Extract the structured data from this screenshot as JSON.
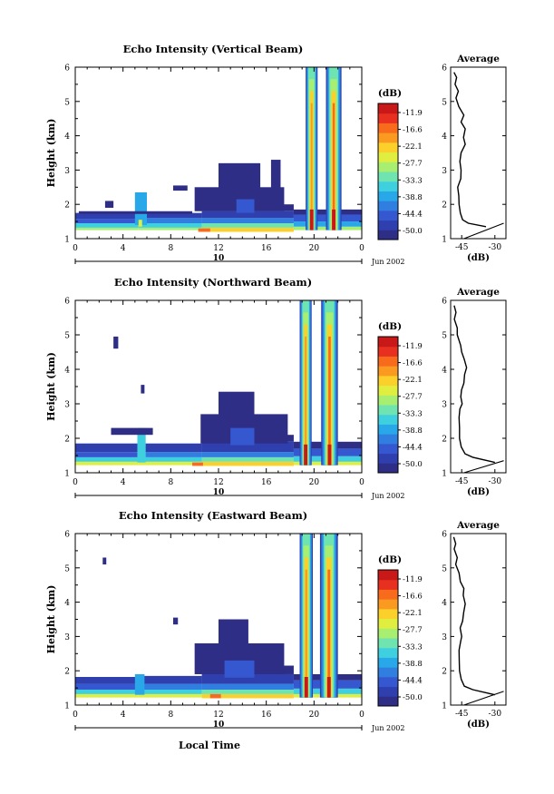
{
  "chart_data": [
    {
      "type": "heatmap",
      "title": "Echo Intensity (Vertical Beam)",
      "ylabel": "Height (km)",
      "ylim": [
        1,
        6
      ],
      "xlim": [
        0,
        24
      ],
      "x_ticks": [
        "0",
        "4",
        "8",
        "12",
        "16",
        "20",
        "0"
      ],
      "y_ticks": [
        "1",
        "2",
        "3",
        "4",
        "5",
        "6"
      ],
      "date_day": "10",
      "date_label": "Jun 2002",
      "colorbar": {
        "title": "(dB)",
        "ticks": [
          "-11.9",
          "-16.6",
          "-22.1",
          "-27.7",
          "-33.3",
          "-38.8",
          "-44.4",
          "-50.0"
        ]
      },
      "average": {
        "title": "Average",
        "xlabel": "(dB)",
        "x_ticks": [
          "-45",
          "-30"
        ],
        "xlim": [
          -50,
          -25
        ],
        "ylim": [
          1,
          6
        ],
        "profile": [
          [
            -34,
            1.35
          ],
          [
            -42,
            1.45
          ],
          [
            -44.6,
            1.55
          ],
          [
            -45.6,
            1.75
          ],
          [
            -46.2,
            2.0
          ],
          [
            -46.3,
            2.25
          ],
          [
            -46.8,
            2.5
          ],
          [
            -45.4,
            2.75
          ],
          [
            -45.3,
            3.0
          ],
          [
            -45.8,
            3.25
          ],
          [
            -45.3,
            3.5
          ],
          [
            -43.4,
            3.75
          ],
          [
            -44.2,
            3.95
          ],
          [
            -43.4,
            4.2
          ],
          [
            -45.3,
            4.4
          ],
          [
            -44.0,
            4.6
          ],
          [
            -46.3,
            4.85
          ],
          [
            -47.6,
            5.1
          ],
          [
            -46.5,
            5.3
          ],
          [
            -48.0,
            5.5
          ],
          [
            -47.3,
            5.7
          ],
          [
            -48.5,
            5.85
          ]
        ],
        "line": [
          [
            -44,
            1.0
          ],
          [
            -26,
            1.45
          ]
        ]
      },
      "layers": [
        {
          "t0": 0,
          "t1": 5.3,
          "bands": [
            [
              1.25,
              1.32,
              0.55
            ],
            [
              1.32,
              1.45,
              0.38
            ],
            [
              1.45,
              1.58,
              0.2
            ],
            [
              1.58,
              1.75,
              0.08
            ]
          ]
        },
        {
          "t0": 5.3,
          "t1": 10.6,
          "bands": [
            [
              1.25,
              1.32,
              0.55
            ],
            [
              1.32,
              1.45,
              0.4
            ],
            [
              1.45,
              1.6,
              0.22
            ],
            [
              1.6,
              1.75,
              0.08
            ]
          ]
        },
        {
          "t0": 10.6,
          "t1": 18.3,
          "bands": [
            [
              1.2,
              1.32,
              0.66
            ],
            [
              1.32,
              1.45,
              0.45
            ],
            [
              1.45,
              1.6,
              0.28
            ],
            [
              1.6,
              1.8,
              0.12
            ],
            [
              1.8,
              2.0,
              0.05
            ]
          ]
        },
        {
          "t0": 18.3,
          "t1": 24,
          "bands": [
            [
              1.25,
              1.35,
              0.55
            ],
            [
              1.35,
              1.5,
              0.35
            ],
            [
              1.5,
              1.7,
              0.15
            ],
            [
              1.7,
              1.85,
              0.05
            ]
          ]
        }
      ],
      "spots": [
        {
          "t0": 5.0,
          "t1": 6.0,
          "h0": 1.4,
          "h1": 2.35,
          "level": 0.35
        },
        {
          "t0": 5.3,
          "t1": 5.6,
          "h0": 1.35,
          "h1": 1.55,
          "level": 0.62
        },
        {
          "t0": 10.0,
          "t1": 17.5,
          "h0": 1.8,
          "h1": 2.5,
          "level": 0.05
        },
        {
          "t0": 12.0,
          "t1": 15.5,
          "h0": 2.4,
          "h1": 3.2,
          "level": 0.04
        },
        {
          "t0": 13.5,
          "t1": 15.0,
          "h0": 1.75,
          "h1": 2.15,
          "level": 0.16
        },
        {
          "t0": 2.5,
          "t1": 3.2,
          "h0": 1.9,
          "h1": 2.1,
          "level": 0.03
        },
        {
          "t0": 8.2,
          "t1": 9.4,
          "h0": 2.4,
          "h1": 2.55,
          "level": 0.02
        },
        {
          "t0": 16.4,
          "t1": 17.2,
          "h0": 2.3,
          "h1": 3.3,
          "level": 0.03
        },
        {
          "t0": 10.3,
          "t1": 11.3,
          "h0": 1.2,
          "h1": 1.3,
          "level": 0.85
        },
        {
          "t0": 0.3,
          "t1": 9.8,
          "h0": 1.72,
          "h1": 1.8,
          "level": 0.03
        }
      ],
      "columns": [
        {
          "t0": 19.3,
          "t1": 20.3,
          "h0": 1.25,
          "h1": 6.0,
          "peak": 0.95
        },
        {
          "t0": 21.0,
          "t1": 22.3,
          "h0": 1.25,
          "h1": 6.0,
          "peak": 0.98
        }
      ]
    },
    {
      "type": "heatmap",
      "title": "Echo Intensity (Northward Beam)",
      "ylabel": "Height (km)",
      "ylim": [
        1,
        6
      ],
      "xlim": [
        0,
        24
      ],
      "x_ticks": [
        "0",
        "4",
        "8",
        "12",
        "16",
        "20",
        "0"
      ],
      "y_ticks": [
        "1",
        "2",
        "3",
        "4",
        "5",
        "6"
      ],
      "date_day": "10",
      "date_label": "Jun 2002",
      "colorbar": {
        "title": "(dB)",
        "ticks": [
          "-11.9",
          "-16.6",
          "-22.1",
          "-27.7",
          "-33.3",
          "-38.8",
          "-44.4",
          "-50.0"
        ]
      },
      "average": {
        "title": "Average",
        "xlabel": "(dB)",
        "x_ticks": [
          "-45",
          "-30"
        ],
        "xlim": [
          -50,
          -25
        ],
        "ylim": [
          1,
          6
        ],
        "profile": [
          [
            -30,
            1.3
          ],
          [
            -40,
            1.45
          ],
          [
            -43.5,
            1.55
          ],
          [
            -45.2,
            1.75
          ],
          [
            -46.0,
            2.0
          ],
          [
            -46.0,
            2.3
          ],
          [
            -46.2,
            2.6
          ],
          [
            -45.8,
            2.85
          ],
          [
            -44.8,
            3.0
          ],
          [
            -45.4,
            3.2
          ],
          [
            -45.1,
            3.4
          ],
          [
            -44.0,
            3.6
          ],
          [
            -43.7,
            3.85
          ],
          [
            -42.8,
            4.05
          ],
          [
            -43.9,
            4.3
          ],
          [
            -45.0,
            4.5
          ],
          [
            -45.5,
            4.7
          ],
          [
            -47.0,
            5.0
          ],
          [
            -47.0,
            5.2
          ],
          [
            -48.3,
            5.45
          ],
          [
            -47.6,
            5.65
          ],
          [
            -48.4,
            5.85
          ]
        ],
        "line": [
          [
            -44,
            1.0
          ],
          [
            -26,
            1.35
          ]
        ]
      },
      "layers": [
        {
          "t0": 0,
          "t1": 5.3,
          "bands": [
            [
              1.22,
              1.32,
              0.58
            ],
            [
              1.32,
              1.45,
              0.38
            ],
            [
              1.45,
              1.6,
              0.2
            ],
            [
              1.6,
              1.85,
              0.08
            ]
          ]
        },
        {
          "t0": 5.3,
          "t1": 10.6,
          "bands": [
            [
              1.22,
              1.32,
              0.58
            ],
            [
              1.32,
              1.45,
              0.38
            ],
            [
              1.45,
              1.6,
              0.22
            ],
            [
              1.6,
              1.85,
              0.08
            ]
          ]
        },
        {
          "t0": 10.6,
          "t1": 18.3,
          "bands": [
            [
              1.2,
              1.32,
              0.66
            ],
            [
              1.32,
              1.45,
              0.45
            ],
            [
              1.45,
              1.6,
              0.28
            ],
            [
              1.6,
              1.9,
              0.12
            ],
            [
              1.9,
              2.1,
              0.05
            ]
          ]
        },
        {
          "t0": 18.3,
          "t1": 24,
          "bands": [
            [
              1.22,
              1.32,
              0.6
            ],
            [
              1.32,
              1.48,
              0.38
            ],
            [
              1.48,
              1.7,
              0.15
            ],
            [
              1.7,
              1.9,
              0.05
            ]
          ]
        }
      ],
      "spots": [
        {
          "t0": 5.2,
          "t1": 5.9,
          "h0": 1.3,
          "h1": 2.3,
          "level": 0.38
        },
        {
          "t0": 3.0,
          "t1": 6.5,
          "h0": 2.1,
          "h1": 2.3,
          "level": 0.03
        },
        {
          "t0": 10.5,
          "t1": 17.8,
          "h0": 1.85,
          "h1": 2.7,
          "level": 0.05
        },
        {
          "t0": 12.0,
          "t1": 15.0,
          "h0": 2.6,
          "h1": 3.35,
          "level": 0.04
        },
        {
          "t0": 13.0,
          "t1": 15.0,
          "h0": 1.8,
          "h1": 2.3,
          "level": 0.17
        },
        {
          "t0": 3.2,
          "t1": 3.6,
          "h0": 4.6,
          "h1": 4.95,
          "level": 0.02
        },
        {
          "t0": 5.5,
          "t1": 5.8,
          "h0": 3.3,
          "h1": 3.55,
          "level": 0.02
        },
        {
          "t0": 9.8,
          "t1": 10.7,
          "h0": 1.2,
          "h1": 1.3,
          "level": 0.85
        }
      ],
      "columns": [
        {
          "t0": 18.8,
          "t1": 19.8,
          "h0": 1.22,
          "h1": 6.0,
          "peak": 0.95
        },
        {
          "t0": 20.6,
          "t1": 22.0,
          "h0": 1.22,
          "h1": 6.0,
          "peak": 0.98
        }
      ]
    },
    {
      "type": "heatmap",
      "title": "Echo Intensity (Eastward Beam)",
      "ylabel": "Height (km)",
      "ylim": [
        1,
        6
      ],
      "xlim": [
        0,
        24
      ],
      "x_ticks": [
        "0",
        "4",
        "8",
        "12",
        "16",
        "20",
        "0"
      ],
      "y_ticks": [
        "1",
        "2",
        "3",
        "4",
        "5",
        "6"
      ],
      "date_day": "10",
      "date_label": "Jun 2002",
      "xlabel": "Local Time",
      "colorbar": {
        "title": "(dB)",
        "ticks": [
          "-11.9",
          "-16.6",
          "-22.1",
          "-27.7",
          "-33.3",
          "-38.8",
          "-44.4",
          "-50.0"
        ]
      },
      "average": {
        "title": "Average",
        "xlabel": "(dB)",
        "x_ticks": [
          "-45",
          "-30"
        ],
        "xlim": [
          -50,
          -25
        ],
        "ylim": [
          1,
          6
        ],
        "profile": [
          [
            -30,
            1.3
          ],
          [
            -40,
            1.45
          ],
          [
            -43.8,
            1.55
          ],
          [
            -45.2,
            1.75
          ],
          [
            -46.0,
            2.0
          ],
          [
            -46.1,
            2.3
          ],
          [
            -46.2,
            2.6
          ],
          [
            -45.5,
            2.85
          ],
          [
            -45.0,
            3.0
          ],
          [
            -45.7,
            3.25
          ],
          [
            -44.6,
            3.45
          ],
          [
            -44.1,
            3.7
          ],
          [
            -43.4,
            3.95
          ],
          [
            -44.3,
            4.2
          ],
          [
            -44.0,
            4.4
          ],
          [
            -45.6,
            4.6
          ],
          [
            -46.2,
            4.85
          ],
          [
            -47.7,
            5.1
          ],
          [
            -47.0,
            5.3
          ],
          [
            -48.4,
            5.55
          ],
          [
            -47.7,
            5.7
          ],
          [
            -48.6,
            5.9
          ]
        ],
        "line": [
          [
            -44,
            1.0
          ],
          [
            -26,
            1.4
          ]
        ]
      },
      "layers": [
        {
          "t0": 0,
          "t1": 5.3,
          "bands": [
            [
              1.22,
              1.32,
              0.58
            ],
            [
              1.32,
              1.45,
              0.38
            ],
            [
              1.45,
              1.62,
              0.2
            ],
            [
              1.62,
              1.82,
              0.08
            ]
          ]
        },
        {
          "t0": 5.3,
          "t1": 10.6,
          "bands": [
            [
              1.22,
              1.32,
              0.58
            ],
            [
              1.32,
              1.45,
              0.4
            ],
            [
              1.45,
              1.62,
              0.22
            ],
            [
              1.62,
              1.85,
              0.08
            ]
          ]
        },
        {
          "t0": 10.6,
          "t1": 18.3,
          "bands": [
            [
              1.2,
              1.32,
              0.66
            ],
            [
              1.32,
              1.45,
              0.45
            ],
            [
              1.45,
              1.62,
              0.28
            ],
            [
              1.62,
              1.9,
              0.12
            ],
            [
              1.9,
              2.15,
              0.05
            ]
          ]
        },
        {
          "t0": 18.3,
          "t1": 24,
          "bands": [
            [
              1.22,
              1.32,
              0.6
            ],
            [
              1.32,
              1.48,
              0.38
            ],
            [
              1.48,
              1.72,
              0.15
            ],
            [
              1.72,
              1.9,
              0.05
            ]
          ]
        }
      ],
      "spots": [
        {
          "t0": 5.0,
          "t1": 5.8,
          "h0": 1.3,
          "h1": 1.9,
          "level": 0.3
        },
        {
          "t0": 10.0,
          "t1": 17.5,
          "h0": 1.9,
          "h1": 2.8,
          "level": 0.05
        },
        {
          "t0": 12.0,
          "t1": 14.5,
          "h0": 2.7,
          "h1": 3.5,
          "level": 0.04
        },
        {
          "t0": 12.5,
          "t1": 15.0,
          "h0": 1.8,
          "h1": 2.3,
          "level": 0.16
        },
        {
          "t0": 2.3,
          "t1": 2.6,
          "h0": 5.1,
          "h1": 5.3,
          "level": 0.02
        },
        {
          "t0": 8.2,
          "t1": 8.6,
          "h0": 3.35,
          "h1": 3.55,
          "level": 0.02
        },
        {
          "t0": 11.3,
          "t1": 12.2,
          "h0": 1.2,
          "h1": 1.32,
          "level": 0.85
        }
      ],
      "columns": [
        {
          "t0": 18.8,
          "t1": 19.9,
          "h0": 1.22,
          "h1": 6.0,
          "peak": 0.95
        },
        {
          "t0": 20.5,
          "t1": 22.0,
          "h0": 1.22,
          "h1": 6.0,
          "peak": 0.98
        }
      ]
    }
  ]
}
